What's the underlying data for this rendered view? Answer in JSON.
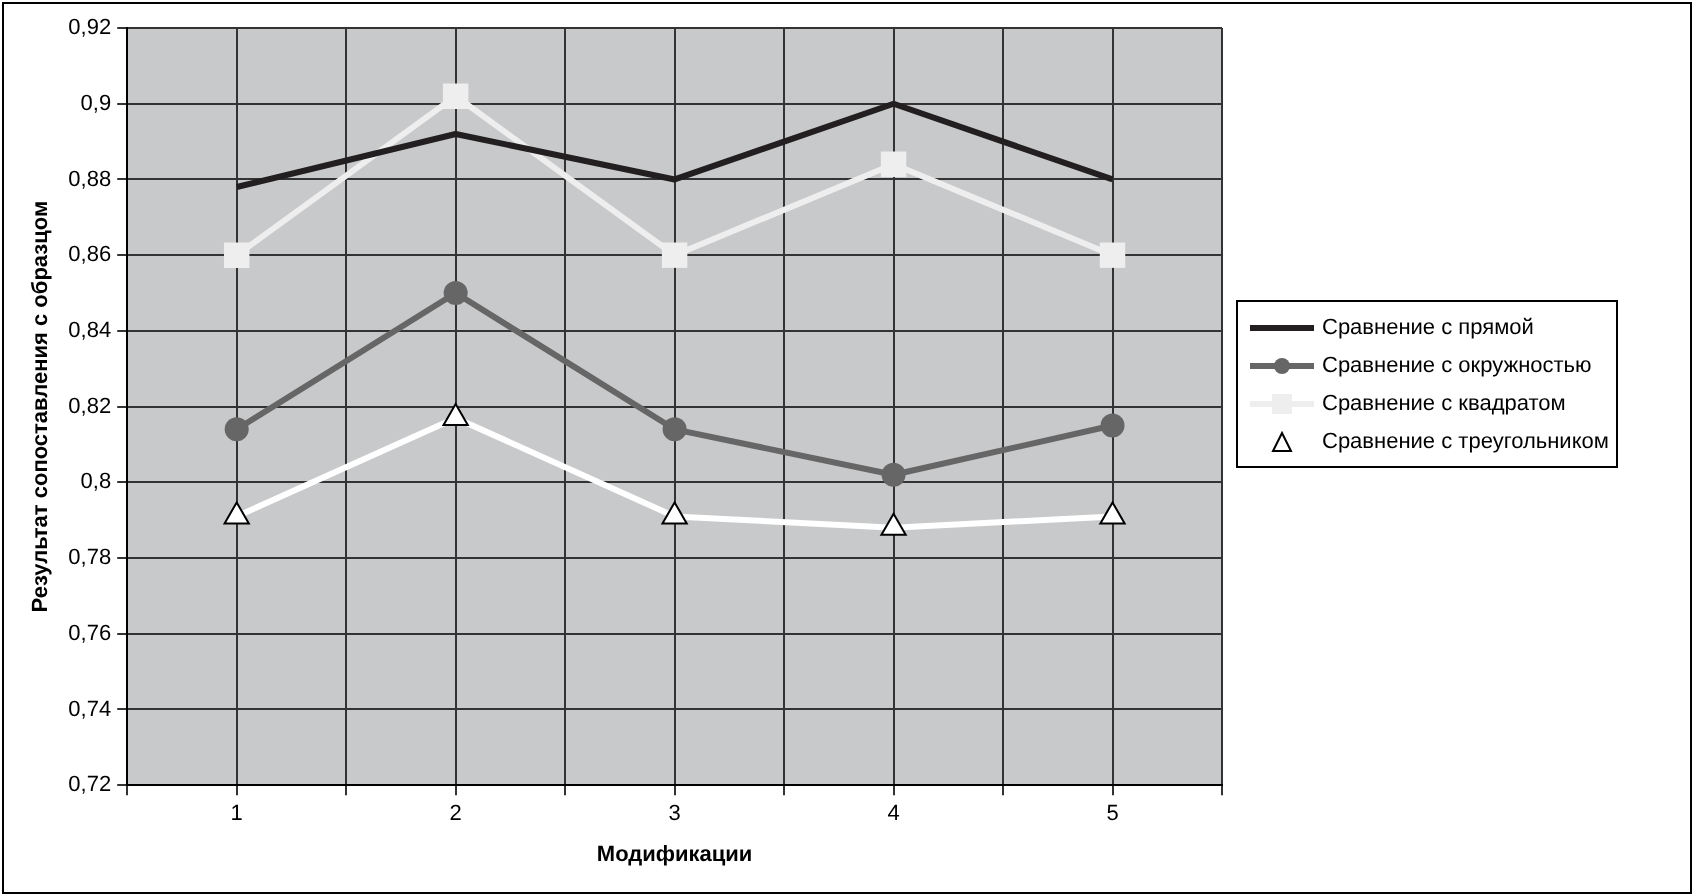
{
  "chart_data": {
    "type": "line",
    "xlabel": "Модификации",
    "ylabel": "Результат сопоставления с образцом",
    "x": [
      1,
      2,
      3,
      4,
      5
    ],
    "xlim": [
      0.5,
      5.5
    ],
    "xticks": [
      {
        "value": 0.5,
        "label": null
      },
      1,
      {
        "value": 1.5,
        "label": null
      },
      2,
      {
        "value": 2.5,
        "label": null
      },
      3,
      {
        "value": 3.5,
        "label": null
      },
      4,
      {
        "value": 4.5,
        "label": null
      },
      5,
      {
        "value": 5.5,
        "label": null
      }
    ],
    "ylim": [
      0.72,
      0.92
    ],
    "yticks": [
      {
        "value": 0.72,
        "label": "0,72"
      },
      {
        "value": 0.74,
        "label": "0,74"
      },
      {
        "value": 0.76,
        "label": "0,76"
      },
      {
        "value": 0.78,
        "label": "0,78"
      },
      {
        "value": 0.8,
        "label": "0,8"
      },
      {
        "value": 0.82,
        "label": "0,82"
      },
      {
        "value": 0.84,
        "label": "0,84"
      },
      {
        "value": 0.86,
        "label": "0,86"
      },
      {
        "value": 0.88,
        "label": "0,88"
      },
      {
        "value": 0.9,
        "label": "0,9"
      },
      {
        "value": 0.92,
        "label": "0,92"
      }
    ],
    "grid": true,
    "legend": "right",
    "series": [
      {
        "name": "Сравнение с прямой",
        "color": "#231f20",
        "marker": "none",
        "values": [
          0.878,
          0.892,
          0.88,
          0.9,
          0.88
        ]
      },
      {
        "name": "Сравнение с окружностью",
        "color": "#666666",
        "marker": "circle",
        "values": [
          0.814,
          0.85,
          0.814,
          0.802,
          0.815
        ]
      },
      {
        "name": "Сравнение с квадратом",
        "color": "#eeeeee",
        "marker": "square",
        "values": [
          0.86,
          0.902,
          0.86,
          0.884,
          0.86
        ]
      },
      {
        "name": "Сравнение с треугольником",
        "color": "#ffffff",
        "marker": "triangle",
        "values": [
          0.791,
          0.817,
          0.791,
          0.788,
          0.791
        ]
      }
    ]
  }
}
